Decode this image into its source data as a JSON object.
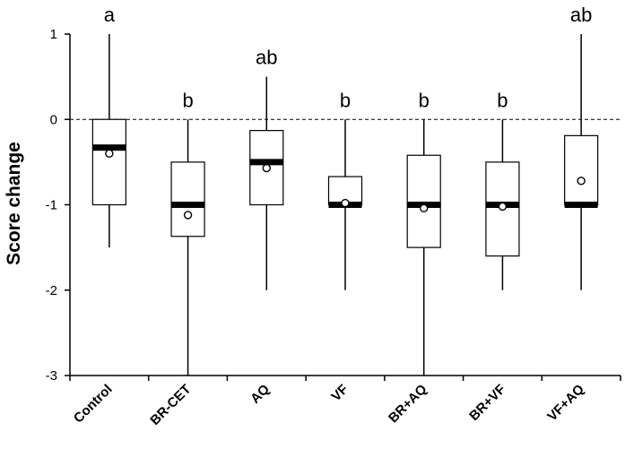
{
  "chart_data": {
    "type": "boxplot",
    "title": "",
    "xlabel": "",
    "ylabel": "Score change",
    "ylim": [
      -3,
      1
    ],
    "yticks": [
      1,
      0,
      -1,
      -2,
      -3
    ],
    "ytick_labels": [
      "1",
      "0",
      "-1",
      "-2",
      "-3"
    ],
    "reference_line": 0,
    "categories": [
      "Control",
      "BR-CET",
      "AQ",
      "VF",
      "BR+AQ",
      "BR+VF",
      "VF+AQ"
    ],
    "boxes": [
      {
        "min": -1.5,
        "q1": -1.0,
        "median": -0.33,
        "q3": 0.0,
        "max": 1.0,
        "mean": -0.4,
        "group": "a"
      },
      {
        "min": -3.0,
        "q1": -1.37,
        "median": -1.0,
        "q3": -0.5,
        "max": 0.0,
        "mean": -1.12,
        "group": "b"
      },
      {
        "min": -2.0,
        "q1": -1.0,
        "median": -0.5,
        "q3": -0.13,
        "max": 0.5,
        "mean": -0.57,
        "group": "ab"
      },
      {
        "min": -2.0,
        "q1": -1.0,
        "median": -1.0,
        "q3": -0.67,
        "max": 0.0,
        "mean": -0.98,
        "group": "b"
      },
      {
        "min": -3.0,
        "q1": -1.5,
        "median": -1.0,
        "q3": -0.42,
        "max": 0.0,
        "mean": -1.04,
        "group": "b"
      },
      {
        "min": -2.0,
        "q1": -1.6,
        "median": -1.0,
        "q3": -0.5,
        "max": 0.0,
        "mean": -1.02,
        "group": "b"
      },
      {
        "min": -2.0,
        "q1": -1.0,
        "median": -1.0,
        "q3": -0.19,
        "max": 1.0,
        "mean": -0.72,
        "group": "ab"
      }
    ]
  }
}
